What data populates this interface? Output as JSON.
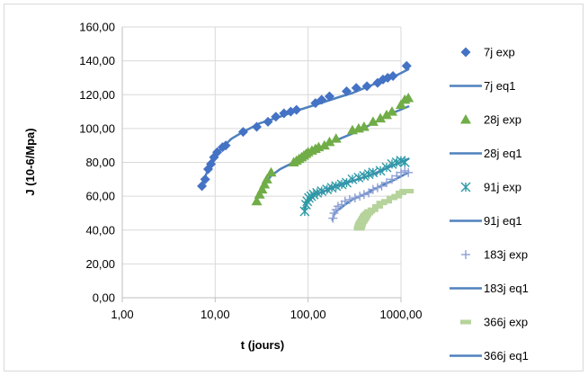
{
  "chart_data": {
    "type": "scatter",
    "title": "",
    "xlabel": "t (jours)",
    "ylabel": "J (10-6/Mpa)",
    "xscale": "log",
    "xlim": [
      1,
      1000
    ],
    "ylim": [
      0,
      160
    ],
    "x_ticks": [
      "1,00",
      "10,00",
      "100,00",
      "1000,00"
    ],
    "y_ticks": [
      "0,00",
      "20,00",
      "40,00",
      "60,00",
      "80,00",
      "100,00",
      "120,00",
      "140,00",
      "160,00"
    ],
    "grid": "horizontal",
    "legend_position": "right",
    "series": [
      {
        "name": "7j exp",
        "kind": "exp",
        "marker": "diamond",
        "color": "#4472c4",
        "points": [
          [
            7.2,
            66
          ],
          [
            7.8,
            70
          ],
          [
            8.4,
            76
          ],
          [
            9.0,
            79
          ],
          [
            9.7,
            83
          ],
          [
            10.5,
            86
          ],
          [
            12,
            89
          ],
          [
            13,
            90
          ],
          [
            20,
            98
          ],
          [
            28,
            101
          ],
          [
            37,
            104
          ],
          [
            45,
            107
          ],
          [
            55,
            109
          ],
          [
            65,
            110
          ],
          [
            75,
            111
          ],
          [
            120,
            115
          ],
          [
            140,
            117
          ],
          [
            170,
            119
          ],
          [
            260,
            122
          ],
          [
            330,
            124
          ],
          [
            430,
            125
          ],
          [
            560,
            127
          ],
          [
            640,
            129
          ],
          [
            720,
            130
          ],
          [
            820,
            131
          ],
          [
            1150,
            137
          ]
        ]
      },
      {
        "name": "7j eq1",
        "kind": "eq",
        "color": "#4f81bd",
        "points": [
          [
            7,
            65
          ],
          [
            8,
            73
          ],
          [
            9,
            79
          ],
          [
            10,
            84
          ],
          [
            12,
            89
          ],
          [
            15,
            94
          ],
          [
            20,
            98
          ],
          [
            30,
            103
          ],
          [
            50,
            107
          ],
          [
            80,
            111
          ],
          [
            120,
            114
          ],
          [
            200,
            118
          ],
          [
            300,
            121
          ],
          [
            500,
            126
          ],
          [
            800,
            130
          ],
          [
            1200,
            135
          ]
        ]
      },
      {
        "name": "28j exp",
        "kind": "exp",
        "marker": "triangle",
        "color": "#70ad47",
        "points": [
          [
            28,
            57
          ],
          [
            30,
            61
          ],
          [
            32,
            64
          ],
          [
            34,
            67
          ],
          [
            36,
            70
          ],
          [
            40,
            74
          ],
          [
            70,
            80
          ],
          [
            75,
            81
          ],
          [
            80,
            82
          ],
          [
            85,
            83
          ],
          [
            90,
            84
          ],
          [
            95,
            85
          ],
          [
            100,
            86
          ],
          [
            110,
            87
          ],
          [
            120,
            88
          ],
          [
            130,
            89
          ],
          [
            150,
            90
          ],
          [
            170,
            92
          ],
          [
            200,
            94
          ],
          [
            300,
            99
          ],
          [
            350,
            100
          ],
          [
            400,
            101
          ],
          [
            500,
            104
          ],
          [
            600,
            106
          ],
          [
            700,
            108
          ],
          [
            800,
            110
          ],
          [
            1000,
            114
          ],
          [
            1100,
            117
          ],
          [
            1200,
            118
          ]
        ]
      },
      {
        "name": "28j eq1",
        "kind": "eq",
        "color": "#4f81bd",
        "points": [
          [
            28,
            58
          ],
          [
            30,
            62
          ],
          [
            35,
            68
          ],
          [
            40,
            72
          ],
          [
            50,
            76
          ],
          [
            70,
            80
          ],
          [
            100,
            85
          ],
          [
            150,
            90
          ],
          [
            200,
            93
          ],
          [
            300,
            97
          ],
          [
            500,
            103
          ],
          [
            800,
            109
          ],
          [
            1200,
            113
          ]
        ]
      },
      {
        "name": "91j exp",
        "kind": "exp",
        "marker": "asterisk",
        "color": "#2e9aa6",
        "points": [
          [
            92,
            51
          ],
          [
            95,
            55
          ],
          [
            98,
            57
          ],
          [
            102,
            59
          ],
          [
            108,
            60
          ],
          [
            115,
            61
          ],
          [
            125,
            62
          ],
          [
            140,
            63
          ],
          [
            160,
            64
          ],
          [
            180,
            65
          ],
          [
            200,
            66
          ],
          [
            230,
            67
          ],
          [
            260,
            68
          ],
          [
            300,
            70
          ],
          [
            350,
            71
          ],
          [
            400,
            72
          ],
          [
            450,
            73
          ],
          [
            500,
            74
          ],
          [
            600,
            75
          ],
          [
            700,
            77
          ],
          [
            800,
            79
          ],
          [
            900,
            80
          ],
          [
            1000,
            81
          ],
          [
            1100,
            80
          ]
        ]
      },
      {
        "name": "91j eq1",
        "kind": "eq",
        "color": "#4f81bd",
        "points": [
          [
            91,
            52
          ],
          [
            95,
            55
          ],
          [
            100,
            57
          ],
          [
            120,
            61
          ],
          [
            150,
            63
          ],
          [
            200,
            66
          ],
          [
            300,
            69
          ],
          [
            500,
            73
          ],
          [
            800,
            78
          ],
          [
            1200,
            82
          ]
        ]
      },
      {
        "name": "183j exp",
        "kind": "exp",
        "marker": "plus",
        "color": "#8ea1d6",
        "points": [
          [
            185,
            47
          ],
          [
            190,
            50
          ],
          [
            200,
            52
          ],
          [
            210,
            54
          ],
          [
            230,
            55
          ],
          [
            250,
            57
          ],
          [
            280,
            58
          ],
          [
            320,
            59
          ],
          [
            360,
            60
          ],
          [
            400,
            61
          ],
          [
            450,
            62
          ],
          [
            500,
            64
          ],
          [
            560,
            65
          ],
          [
            620,
            66
          ],
          [
            700,
            68
          ],
          [
            800,
            70
          ],
          [
            900,
            72
          ],
          [
            1000,
            74
          ],
          [
            1100,
            75
          ],
          [
            1200,
            74
          ]
        ]
      },
      {
        "name": "183j eq1",
        "kind": "eq",
        "color": "#4f81bd",
        "points": [
          [
            183,
            46
          ],
          [
            190,
            49
          ],
          [
            200,
            51
          ],
          [
            250,
            55
          ],
          [
            300,
            58
          ],
          [
            400,
            61
          ],
          [
            600,
            66
          ],
          [
            800,
            69
          ],
          [
            1200,
            74
          ]
        ]
      },
      {
        "name": "366j exp",
        "kind": "exp",
        "marker": "dash",
        "color": "#b5d39b",
        "points": [
          [
            355,
            41
          ],
          [
            360,
            42
          ],
          [
            365,
            43
          ],
          [
            370,
            44
          ],
          [
            380,
            45
          ],
          [
            390,
            46
          ],
          [
            400,
            47
          ],
          [
            410,
            48
          ],
          [
            420,
            49
          ],
          [
            440,
            50
          ],
          [
            460,
            51
          ],
          [
            500,
            52
          ],
          [
            560,
            54
          ],
          [
            620,
            56
          ],
          [
            700,
            57
          ],
          [
            800,
            59
          ],
          [
            900,
            60
          ],
          [
            1000,
            62
          ],
          [
            1100,
            63
          ],
          [
            1200,
            63
          ]
        ]
      },
      {
        "name": "366j eq1",
        "kind": "eq",
        "color": "#4f81bd",
        "points": [
          [
            366,
            42
          ],
          [
            380,
            45
          ],
          [
            400,
            47
          ],
          [
            450,
            50
          ],
          [
            500,
            52
          ],
          [
            600,
            55
          ],
          [
            800,
            59
          ],
          [
            1000,
            61
          ],
          [
            1200,
            63
          ]
        ]
      }
    ]
  }
}
